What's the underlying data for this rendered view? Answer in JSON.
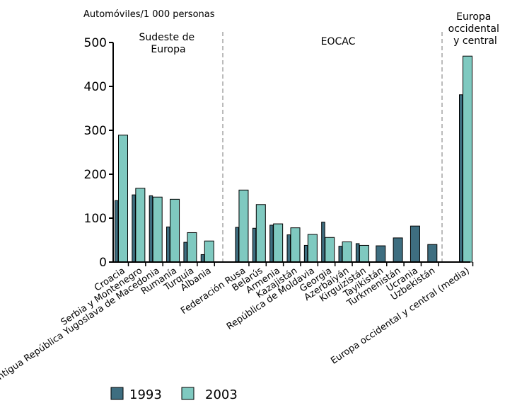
{
  "chart_data": {
    "type": "bar",
    "ylabel": "Automóviles/1 000 personas",
    "ylim": [
      0,
      500
    ],
    "yticks": [
      "0",
      "100",
      "200",
      "300",
      "400",
      "500"
    ],
    "grid": false,
    "legend_position": "bottom-left",
    "colors": {
      "1993": "#3e6e80",
      "2003": "#7fc9c0"
    },
    "groups": [
      {
        "label_lines": [
          "Sudeste de",
          "Europa"
        ]
      },
      {
        "label_lines": [
          "EOCAC"
        ]
      },
      {
        "label_lines": [
          "Europa",
          "occidental",
          "y central"
        ]
      }
    ],
    "categories": [
      "Croacia",
      "Serbia y Montenegro",
      "Antigua República Yugoslava de Macedonia",
      "Rumanía",
      "Turquía",
      "Albania",
      "Federación Rusa",
      "Belarús",
      "Armenia",
      "Kazajistán",
      "República de Moldavia",
      "Georgia",
      "Azerbaiyán",
      "Kirguizistán",
      "Tayikistán",
      "Turkmenistán",
      "Ucrania",
      "Uzbekistán",
      "Europa occidental y central (media)"
    ],
    "series": [
      {
        "name": "1993",
        "values": [
          140,
          153,
          151,
          80,
          45,
          17,
          79,
          77,
          84,
          62,
          38,
          91,
          36,
          42,
          37,
          55,
          82,
          40,
          381
        ]
      },
      {
        "name": "2003",
        "values": [
          289,
          168,
          148,
          143,
          67,
          48,
          164,
          131,
          87,
          78,
          63,
          56,
          46,
          38,
          null,
          null,
          null,
          null,
          469
        ]
      }
    ]
  }
}
